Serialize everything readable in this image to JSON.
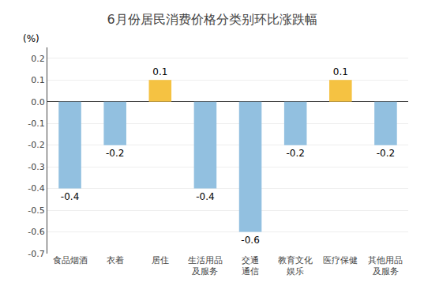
{
  "chart_data": {
    "type": "bar",
    "title": "6月份居民消费价格分类别环比涨跌幅",
    "ylabel": "(%)",
    "categories": [
      "食品烟酒",
      "衣着",
      "居住",
      "生活用品\n及服务",
      "交通\n通信",
      "教育文化\n娱乐",
      "医疗保健",
      "其他用品\n及服务"
    ],
    "values": [
      -0.4,
      -0.2,
      0.1,
      -0.4,
      -0.6,
      -0.2,
      0.1,
      -0.2
    ],
    "colors": [
      "#92c0e0",
      "#92c0e0",
      "#f5c242",
      "#92c0e0",
      "#92c0e0",
      "#92c0e0",
      "#f5c242",
      "#92c0e0"
    ],
    "ylim": [
      -0.7,
      0.25
    ],
    "yticks": [
      -0.7,
      -0.6,
      -0.5,
      -0.4,
      -0.3,
      -0.2,
      -0.1,
      {
        "value": 0.0,
        "label": "0.0"
      },
      0.1,
      0.2
    ],
    "grid": true,
    "data_labels": true
  }
}
